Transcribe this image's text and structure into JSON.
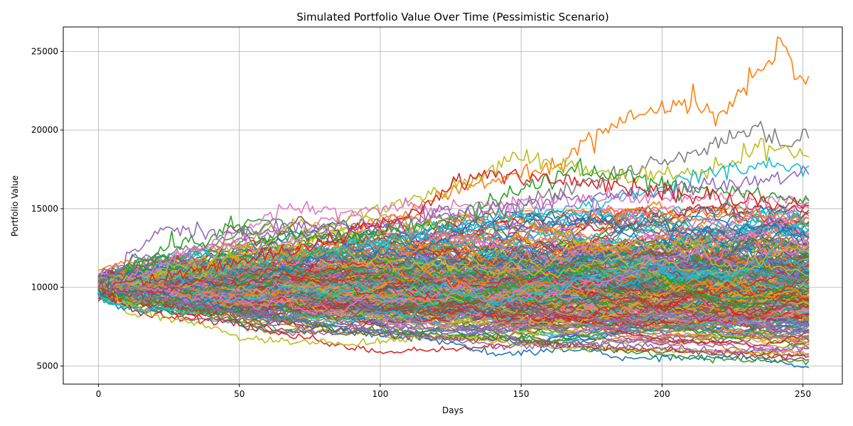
{
  "chart_data": {
    "type": "line",
    "title": "Simulated Portfolio Value Over Time (Pessimistic Scenario)",
    "xlabel": "Days",
    "ylabel": "Portfolio Value",
    "xlim": [
      -12.5,
      264
    ],
    "ylim": [
      3850,
      26550
    ],
    "xticks": [
      0,
      50,
      100,
      150,
      200,
      250
    ],
    "yticks": [
      5000,
      10000,
      15000,
      20000,
      25000
    ],
    "grid": true,
    "legend": "none",
    "simulation": {
      "num_paths": 300,
      "days": 252,
      "initial_value": 10000
    },
    "palette": [
      "#1f77b4",
      "#ff7f0e",
      "#2ca02c",
      "#d62728",
      "#9467bd",
      "#8c564b",
      "#e377c2",
      "#7f7f7f",
      "#bcbd22",
      "#17becf"
    ],
    "series": [
      {
        "color": "#ff7f0e",
        "points": [
          [
            0,
            10000
          ],
          [
            25,
            10600
          ],
          [
            50,
            11500
          ],
          [
            75,
            12300
          ],
          [
            100,
            14000
          ],
          [
            125,
            16100
          ],
          [
            150,
            17200
          ],
          [
            165,
            17800
          ],
          [
            175,
            19600
          ],
          [
            190,
            21000
          ],
          [
            200,
            21300
          ],
          [
            210,
            21600
          ],
          [
            220,
            21000
          ],
          [
            230,
            22600
          ],
          [
            240,
            24800
          ],
          [
            242,
            25550
          ],
          [
            245,
            24900
          ],
          [
            248,
            23200
          ],
          [
            252,
            23400
          ]
        ]
      },
      {
        "color": "#7f7f7f",
        "points": [
          [
            0,
            10000
          ],
          [
            50,
            11200
          ],
          [
            100,
            12800
          ],
          [
            150,
            15200
          ],
          [
            175,
            16800
          ],
          [
            200,
            18000
          ],
          [
            215,
            18600
          ],
          [
            225,
            19700
          ],
          [
            235,
            20000
          ],
          [
            245,
            19200
          ],
          [
            252,
            19500
          ]
        ]
      },
      {
        "color": "#bcbd22",
        "points": [
          [
            0,
            10000
          ],
          [
            50,
            11600
          ],
          [
            95,
            14800
          ],
          [
            130,
            16500
          ],
          [
            150,
            18400
          ],
          [
            165,
            17800
          ],
          [
            180,
            17200
          ],
          [
            200,
            17000
          ],
          [
            220,
            17600
          ],
          [
            235,
            18900
          ],
          [
            245,
            18500
          ],
          [
            252,
            18300
          ]
        ]
      },
      {
        "color": "#17becf",
        "points": [
          [
            0,
            10000
          ],
          [
            50,
            11400
          ],
          [
            100,
            13000
          ],
          [
            150,
            14600
          ],
          [
            200,
            16200
          ],
          [
            215,
            17300
          ],
          [
            235,
            17600
          ],
          [
            245,
            17800
          ],
          [
            252,
            17700
          ]
        ]
      },
      {
        "color": "#e377c2",
        "points": [
          [
            0,
            10000
          ],
          [
            30,
            12000
          ],
          [
            60,
            14200
          ],
          [
            67,
            15100
          ],
          [
            80,
            14700
          ],
          [
            100,
            14900
          ],
          [
            125,
            15100
          ],
          [
            150,
            15400
          ],
          [
            200,
            15800
          ],
          [
            252,
            15600
          ]
        ]
      },
      {
        "color": "#2ca02c",
        "points": [
          [
            0,
            10000
          ],
          [
            25,
            12700
          ],
          [
            40,
            12900
          ],
          [
            47,
            14200
          ],
          [
            55,
            13300
          ],
          [
            80,
            13100
          ],
          [
            120,
            14000
          ],
          [
            170,
            17500
          ],
          [
            200,
            16500
          ],
          [
            252,
            15500
          ]
        ]
      },
      {
        "color": "#9467bd",
        "points": [
          [
            0,
            10000
          ],
          [
            15,
            12600
          ],
          [
            24,
            13900
          ],
          [
            35,
            13400
          ],
          [
            60,
            13600
          ],
          [
            100,
            14200
          ],
          [
            150,
            15300
          ],
          [
            200,
            16200
          ],
          [
            252,
            17200
          ]
        ]
      },
      {
        "color": "#d62728",
        "points": [
          [
            0,
            10000
          ],
          [
            40,
            11200
          ],
          [
            80,
            12800
          ],
          [
            110,
            14700
          ],
          [
            125,
            16300
          ],
          [
            140,
            17400
          ],
          [
            150,
            17000
          ],
          [
            200,
            16100
          ],
          [
            252,
            15200
          ]
        ]
      },
      {
        "color": "#1f77b4",
        "points": [
          [
            0,
            10000
          ],
          [
            30,
            9300
          ],
          [
            60,
            8200
          ],
          [
            90,
            7200
          ],
          [
            120,
            6600
          ],
          [
            130,
            6200
          ],
          [
            140,
            5700
          ],
          [
            150,
            5900
          ],
          [
            175,
            6100
          ],
          [
            185,
            5400
          ],
          [
            200,
            5500
          ],
          [
            220,
            5600
          ],
          [
            240,
            5300
          ],
          [
            252,
            4900
          ]
        ]
      },
      {
        "color": "#2ca02c",
        "points": [
          [
            0,
            10000
          ],
          [
            40,
            8600
          ],
          [
            80,
            7600
          ],
          [
            120,
            7000
          ],
          [
            160,
            6500
          ],
          [
            200,
            5700
          ],
          [
            225,
            5400
          ],
          [
            252,
            5300
          ]
        ]
      },
      {
        "color": "#d62728",
        "points": [
          [
            0,
            10000
          ],
          [
            15,
            8300
          ],
          [
            45,
            7800
          ],
          [
            80,
            6500
          ],
          [
            100,
            5900
          ],
          [
            110,
            6000
          ],
          [
            130,
            6100
          ],
          [
            150,
            6400
          ],
          [
            200,
            6000
          ],
          [
            252,
            5600
          ]
        ]
      },
      {
        "color": "#bcbd22",
        "points": [
          [
            0,
            10000
          ],
          [
            20,
            8200
          ],
          [
            40,
            7600
          ],
          [
            50,
            6800
          ],
          [
            70,
            6600
          ],
          [
            90,
            6400
          ],
          [
            120,
            6900
          ],
          [
            160,
            6200
          ],
          [
            200,
            6000
          ],
          [
            252,
            5800
          ]
        ]
      },
      {
        "color": "#8c564b",
        "points": [
          [
            0,
            10000
          ],
          [
            50,
            8000
          ],
          [
            100,
            7000
          ],
          [
            150,
            6600
          ],
          [
            200,
            6000
          ],
          [
            252,
            5400
          ]
        ]
      },
      {
        "color": "#9467bd",
        "points": [
          [
            0,
            10000
          ],
          [
            50,
            8400
          ],
          [
            100,
            7200
          ],
          [
            145,
            6200
          ],
          [
            180,
            6400
          ],
          [
            220,
            5900
          ],
          [
            252,
            6100
          ]
        ]
      }
    ]
  }
}
